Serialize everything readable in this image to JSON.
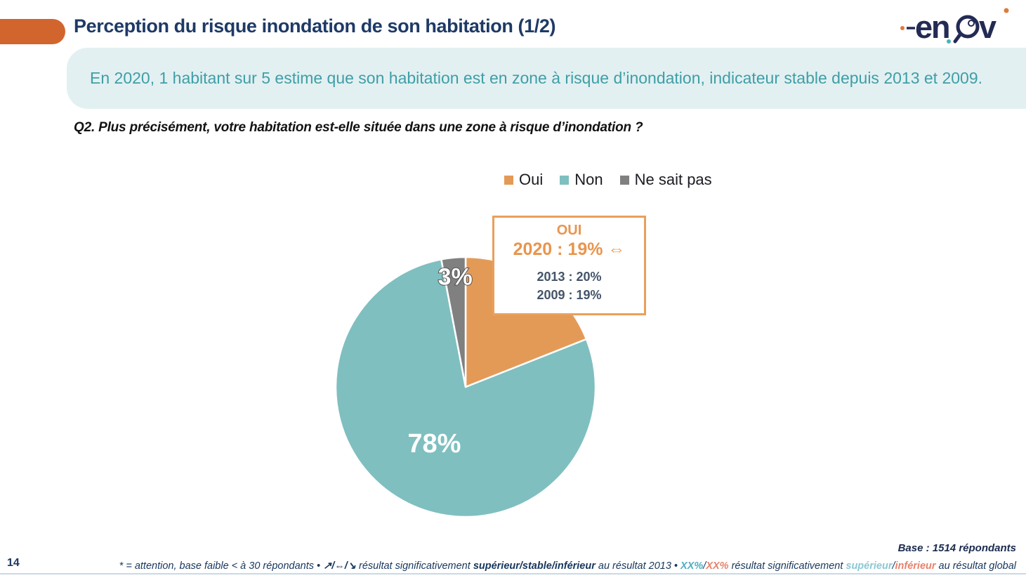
{
  "header": {
    "title": "Perception du risque inondation de son habitation (1/2)",
    "logo_text": "enov"
  },
  "banner": {
    "text": "En 2020, 1 habitant sur 5 estime que son habitation est en zone à risque d’inondation, indicateur stable depuis 2013 et 2009."
  },
  "question": {
    "text": "Q2. Plus précisément, votre habitation est-elle située dans une zone à risque d’inondation ?"
  },
  "chart_data": {
    "type": "pie",
    "categories": [
      "Oui",
      "Non",
      "Ne sait pas"
    ],
    "values": [
      19,
      78,
      3
    ],
    "unit": "%",
    "colors": [
      "#E49A57",
      "#7FBFC0",
      "#808080"
    ],
    "slice_labels": [
      "",
      "78%",
      "3%"
    ],
    "legend_position": "top",
    "start_angle_deg": -90,
    "direction": "clockwise",
    "callout": {
      "segment": "Oui",
      "values_by_year": {
        "2020": "19%",
        "2013": "20%",
        "2009": "19%"
      },
      "trend_vs_2013": "stable"
    }
  },
  "callout": {
    "title": "OUI",
    "line_2020": "2020 : 19% ⇔",
    "line_2013": "2013 : 20%",
    "line_2009": "2009 : 19%"
  },
  "footer": {
    "page_number": "14",
    "base": "Base : 1514 répondants",
    "note_segments": [
      {
        "t": "* = attention, base faible < à 30 répondants • ",
        "c": "navy",
        "b": false
      },
      {
        "t": "↗/⇔/↘",
        "c": "navy",
        "b": true
      },
      {
        "t": " résultat significativement ",
        "c": "navy",
        "b": false
      },
      {
        "t": "supérieur/stable/inférieur",
        "c": "navy",
        "b": true
      },
      {
        "t": " au résultat 2013 • ",
        "c": "navy",
        "b": false
      },
      {
        "t": "XX%",
        "c": "teal",
        "b": true
      },
      {
        "t": "/",
        "c": "navy",
        "b": false
      },
      {
        "t": "XX%",
        "c": "coral",
        "b": true
      },
      {
        "t": " résultat significativement ",
        "c": "navy",
        "b": false
      },
      {
        "t": "supérieur",
        "c": "lightteal",
        "b": true
      },
      {
        "t": "/",
        "c": "navy",
        "b": false
      },
      {
        "t": "inférieur",
        "c": "coral",
        "b": true
      },
      {
        "t": " au résultat global",
        "c": "navy",
        "b": false
      }
    ]
  },
  "colors": {
    "accent_orange": "#D2652E",
    "title_navy": "#1E3A66",
    "banner_bg": "#E2F0F1",
    "banner_text": "#3F9EA7",
    "pie_oui": "#E49A57",
    "pie_non": "#7FBFC0",
    "pie_nsp": "#808080",
    "callout_border": "#E9A05B"
  }
}
